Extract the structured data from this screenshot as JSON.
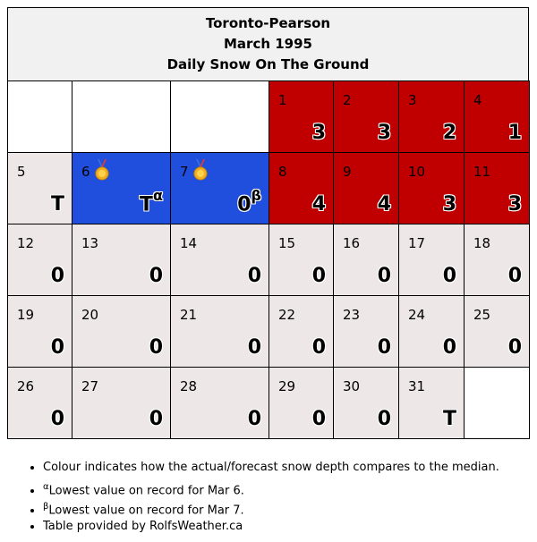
{
  "header": {
    "station": "Toronto-Pearson",
    "period": "March 1995",
    "metric": "Daily Snow On The Ground"
  },
  "calendar": {
    "weeks": [
      [
        {
          "type": "empty"
        },
        {
          "type": "empty"
        },
        {
          "type": "empty"
        },
        {
          "day": "1",
          "value": "3",
          "color": "red"
        },
        {
          "day": "2",
          "value": "3",
          "color": "red"
        },
        {
          "day": "3",
          "value": "2",
          "color": "red"
        },
        {
          "day": "4",
          "value": "1",
          "color": "red"
        }
      ],
      [
        {
          "day": "5",
          "value": "T",
          "color": "grey"
        },
        {
          "day": "6",
          "value": "T",
          "sup": "α",
          "color": "blue",
          "medal": true
        },
        {
          "day": "7",
          "value": "0",
          "sup": "β",
          "color": "blue",
          "medal": true
        },
        {
          "day": "8",
          "value": "4",
          "color": "red"
        },
        {
          "day": "9",
          "value": "4",
          "color": "red"
        },
        {
          "day": "10",
          "value": "3",
          "color": "red"
        },
        {
          "day": "11",
          "value": "3",
          "color": "red"
        }
      ],
      [
        {
          "day": "12",
          "value": "0",
          "color": "grey"
        },
        {
          "day": "13",
          "value": "0",
          "color": "grey"
        },
        {
          "day": "14",
          "value": "0",
          "color": "grey"
        },
        {
          "day": "15",
          "value": "0",
          "color": "grey"
        },
        {
          "day": "16",
          "value": "0",
          "color": "grey"
        },
        {
          "day": "17",
          "value": "0",
          "color": "grey"
        },
        {
          "day": "18",
          "value": "0",
          "color": "grey"
        }
      ],
      [
        {
          "day": "19",
          "value": "0",
          "color": "grey"
        },
        {
          "day": "20",
          "value": "0",
          "color": "grey"
        },
        {
          "day": "21",
          "value": "0",
          "color": "grey"
        },
        {
          "day": "22",
          "value": "0",
          "color": "grey"
        },
        {
          "day": "23",
          "value": "0",
          "color": "grey"
        },
        {
          "day": "24",
          "value": "0",
          "color": "grey"
        },
        {
          "day": "25",
          "value": "0",
          "color": "grey"
        }
      ],
      [
        {
          "day": "26",
          "value": "0",
          "color": "grey"
        },
        {
          "day": "27",
          "value": "0",
          "color": "grey"
        },
        {
          "day": "28",
          "value": "0",
          "color": "grey"
        },
        {
          "day": "29",
          "value": "0",
          "color": "grey"
        },
        {
          "day": "30",
          "value": "0",
          "color": "grey"
        },
        {
          "day": "31",
          "value": "T",
          "color": "grey"
        },
        {
          "type": "empty"
        }
      ]
    ]
  },
  "colors": {
    "red": "#c00000",
    "blue": "#1f4fdc",
    "grey": "#ede7e8",
    "empty": "#ffffff"
  },
  "notes": {
    "colour": "Colour indicates how the actual/forecast snow depth compares to the median.",
    "alpha_mark": "α",
    "alpha_text": "Lowest value on record for Mar 6.",
    "beta_mark": "β",
    "beta_text": "Lowest value on record for Mar 7.",
    "credit": "Table provided by RolfsWeather.ca"
  }
}
